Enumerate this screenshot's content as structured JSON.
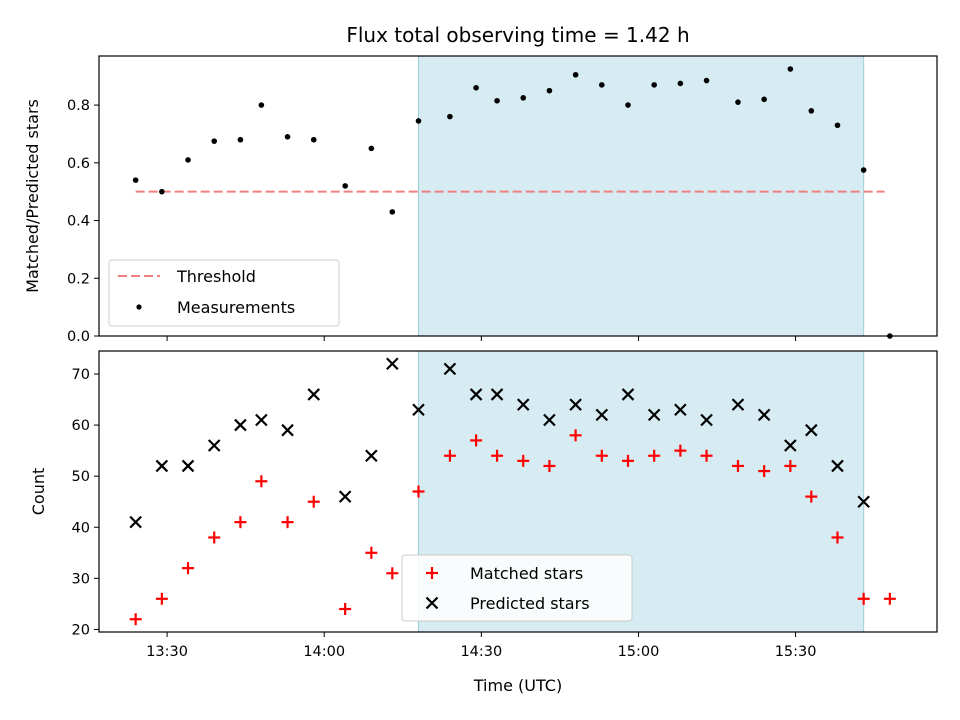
{
  "chart_data": [
    {
      "type": "scatter",
      "title": "Flux total observing time = 1.42 h",
      "ylabel": "Matched/Predicted stars",
      "xlabel": "",
      "ylim": [
        0,
        0.97
      ],
      "xlim": [
        "13:17",
        "15:57"
      ],
      "yticks": [
        0.0,
        0.2,
        0.4,
        0.6,
        0.8
      ],
      "ytick_labels": [
        "0.0",
        "0.2",
        "0.4",
        "0.6",
        "0.8"
      ],
      "shaded_span": [
        "14:18",
        "15:43"
      ],
      "threshold": {
        "name": "Threshold",
        "value": 0.5,
        "x_range": [
          "13:24",
          "15:47"
        ],
        "color": "#f08080"
      },
      "series": [
        {
          "name": "Measurements",
          "color": "#000000",
          "x": [
            "13:24",
            "13:29",
            "13:34",
            "13:39",
            "13:44",
            "13:48",
            "13:53",
            "13:58",
            "14:04",
            "14:09",
            "14:13",
            "14:18",
            "14:24",
            "14:29",
            "14:33",
            "14:38",
            "14:43",
            "14:48",
            "14:53",
            "14:58",
            "15:03",
            "15:08",
            "15:13",
            "15:19",
            "15:24",
            "15:29",
            "15:33",
            "15:38",
            "15:43",
            "15:48"
          ],
          "y": [
            0.54,
            0.5,
            0.61,
            0.675,
            0.68,
            0.8,
            0.69,
            0.68,
            0.52,
            0.65,
            0.43,
            0.745,
            0.76,
            0.86,
            0.815,
            0.825,
            0.85,
            0.905,
            0.87,
            0.8,
            0.87,
            0.875,
            0.885,
            0.81,
            0.82,
            0.925,
            0.78,
            0.73,
            0.575,
            0.0
          ]
        }
      ],
      "legend": "lower-left"
    },
    {
      "type": "scatter",
      "title": "",
      "ylabel": "Count",
      "xlabel": "Time (UTC)",
      "ylim": [
        19.5,
        74.5
      ],
      "xlim": [
        "13:17",
        "15:57"
      ],
      "yticks": [
        20,
        30,
        40,
        50,
        60,
        70
      ],
      "ytick_labels": [
        "20",
        "30",
        "40",
        "50",
        "60",
        "70"
      ],
      "xticks": [
        "13:30",
        "14:00",
        "14:30",
        "15:00",
        "15:30"
      ],
      "xtick_labels": [
        "13:30",
        "14:00",
        "14:30",
        "15:00",
        "15:30"
      ],
      "shaded_span": [
        "14:18",
        "15:43"
      ],
      "series": [
        {
          "name": "Matched stars",
          "color": "#ff0000",
          "marker": "plus",
          "x": [
            "13:24",
            "13:29",
            "13:34",
            "13:39",
            "13:44",
            "13:48",
            "13:53",
            "13:58",
            "14:04",
            "14:09",
            "14:13",
            "14:18",
            "14:24",
            "14:29",
            "14:33",
            "14:38",
            "14:43",
            "14:48",
            "14:53",
            "14:58",
            "15:03",
            "15:08",
            "15:13",
            "15:19",
            "15:24",
            "15:29",
            "15:33",
            "15:38",
            "15:43",
            "15:48"
          ],
          "y": [
            22,
            26,
            32,
            38,
            41,
            49,
            41,
            45,
            24,
            35,
            31,
            47,
            54,
            57,
            54,
            53,
            52,
            58,
            54,
            53,
            54,
            55,
            54,
            52,
            51,
            52,
            46,
            38,
            26,
            26
          ]
        },
        {
          "name": "Predicted stars",
          "color": "#000000",
          "marker": "x",
          "x": [
            "13:24",
            "13:29",
            "13:34",
            "13:39",
            "13:44",
            "13:48",
            "13:53",
            "13:58",
            "14:04",
            "14:09",
            "14:13",
            "14:18",
            "14:24",
            "14:29",
            "14:33",
            "14:38",
            "14:43",
            "14:48",
            "14:53",
            "14:58",
            "15:03",
            "15:08",
            "15:13",
            "15:19",
            "15:24",
            "15:29",
            "15:33",
            "15:38",
            "15:43"
          ],
          "y": [
            41,
            52,
            52,
            56,
            60,
            61,
            59,
            66,
            46,
            54,
            72,
            63,
            71,
            66,
            66,
            64,
            61,
            64,
            62,
            66,
            62,
            63,
            61,
            64,
            62,
            56,
            59,
            52,
            45
          ]
        }
      ],
      "legend": "lower-center"
    }
  ]
}
